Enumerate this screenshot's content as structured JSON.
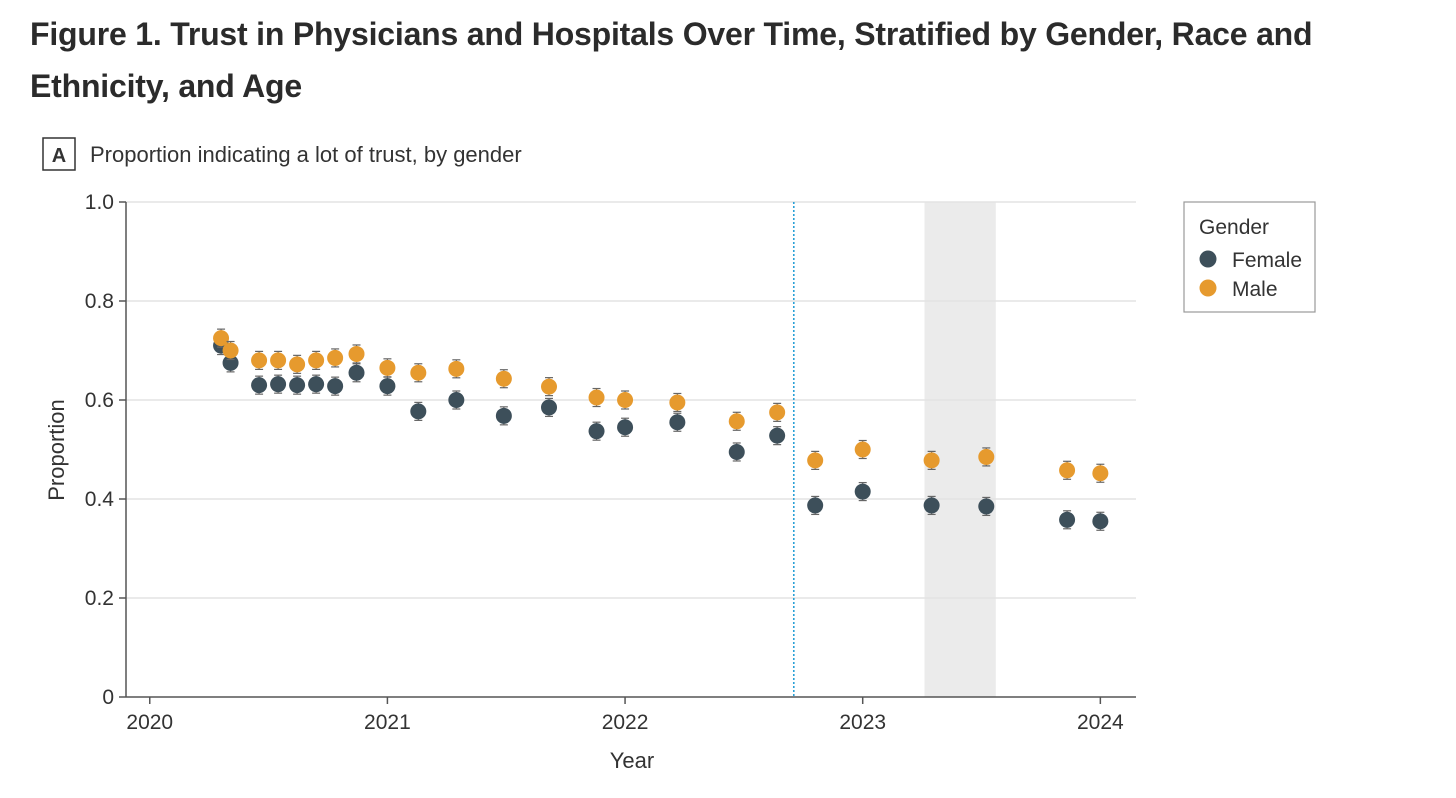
{
  "figure_title": "Figure 1.  Trust in Physicians and Hospitals Over Time, Stratified by Gender, Race and Ethnicity, and Age",
  "colors": {
    "female": "#3d4f5a",
    "male": "#e69a2e",
    "gridline": "#e3e3e3",
    "axis": "#555555",
    "vline": "#2aa0d6",
    "shaded_band": "#ebebeb"
  },
  "chart_data": {
    "type": "scatter",
    "panel_letter": "A",
    "title": "Proportion indicating a lot of trust, by gender",
    "xlabel": "Year",
    "ylabel": "Proportion",
    "xlim": [
      2019.9,
      2024.15
    ],
    "ylim": [
      0,
      1.0
    ],
    "x_ticks": [
      2020,
      2021,
      2022,
      2023,
      2024
    ],
    "x_tick_labels": [
      "2020",
      "2021",
      "2022",
      "2023",
      "2024"
    ],
    "y_ticks": [
      0,
      0.2,
      0.4,
      0.6,
      0.8,
      1.0
    ],
    "y_tick_labels": [
      "0",
      "0.2",
      "0.4",
      "0.6",
      "0.8",
      "1.0"
    ],
    "grid": "horizontal",
    "vertical_line_x": 2022.71,
    "shaded_band_x": [
      2023.26,
      2023.56
    ],
    "legend": {
      "title": "Gender",
      "placement": "top-right outside"
    },
    "series": [
      {
        "name": "Female",
        "color_key": "female",
        "points": [
          {
            "x": 2020.3,
            "y": 0.71
          },
          {
            "x": 2020.34,
            "y": 0.675
          },
          {
            "x": 2020.46,
            "y": 0.63
          },
          {
            "x": 2020.54,
            "y": 0.632
          },
          {
            "x": 2020.62,
            "y": 0.63
          },
          {
            "x": 2020.7,
            "y": 0.632
          },
          {
            "x": 2020.78,
            "y": 0.628
          },
          {
            "x": 2020.87,
            "y": 0.655
          },
          {
            "x": 2021.0,
            "y": 0.628
          },
          {
            "x": 2021.13,
            "y": 0.577
          },
          {
            "x": 2021.29,
            "y": 0.6
          },
          {
            "x": 2021.49,
            "y": 0.568
          },
          {
            "x": 2021.68,
            "y": 0.585
          },
          {
            "x": 2021.88,
            "y": 0.537
          },
          {
            "x": 2022.0,
            "y": 0.545
          },
          {
            "x": 2022.22,
            "y": 0.555
          },
          {
            "x": 2022.47,
            "y": 0.495
          },
          {
            "x": 2022.64,
            "y": 0.528
          },
          {
            "x": 2022.8,
            "y": 0.387
          },
          {
            "x": 2023.0,
            "y": 0.415
          },
          {
            "x": 2023.29,
            "y": 0.387
          },
          {
            "x": 2023.52,
            "y": 0.385
          },
          {
            "x": 2023.86,
            "y": 0.358
          },
          {
            "x": 2024.0,
            "y": 0.355
          }
        ]
      },
      {
        "name": "Male",
        "color_key": "male",
        "points": [
          {
            "x": 2020.3,
            "y": 0.725
          },
          {
            "x": 2020.34,
            "y": 0.7
          },
          {
            "x": 2020.46,
            "y": 0.68
          },
          {
            "x": 2020.54,
            "y": 0.68
          },
          {
            "x": 2020.62,
            "y": 0.672
          },
          {
            "x": 2020.7,
            "y": 0.68
          },
          {
            "x": 2020.78,
            "y": 0.685
          },
          {
            "x": 2020.87,
            "y": 0.693
          },
          {
            "x": 2021.0,
            "y": 0.665
          },
          {
            "x": 2021.13,
            "y": 0.655
          },
          {
            "x": 2021.29,
            "y": 0.663
          },
          {
            "x": 2021.49,
            "y": 0.643
          },
          {
            "x": 2021.68,
            "y": 0.627
          },
          {
            "x": 2021.88,
            "y": 0.605
          },
          {
            "x": 2022.0,
            "y": 0.6
          },
          {
            "x": 2022.22,
            "y": 0.595
          },
          {
            "x": 2022.47,
            "y": 0.557
          },
          {
            "x": 2022.64,
            "y": 0.575
          },
          {
            "x": 2022.8,
            "y": 0.478
          },
          {
            "x": 2023.0,
            "y": 0.5
          },
          {
            "x": 2023.29,
            "y": 0.478
          },
          {
            "x": 2023.52,
            "y": 0.485
          },
          {
            "x": 2023.86,
            "y": 0.458
          },
          {
            "x": 2024.0,
            "y": 0.452
          }
        ]
      }
    ]
  }
}
